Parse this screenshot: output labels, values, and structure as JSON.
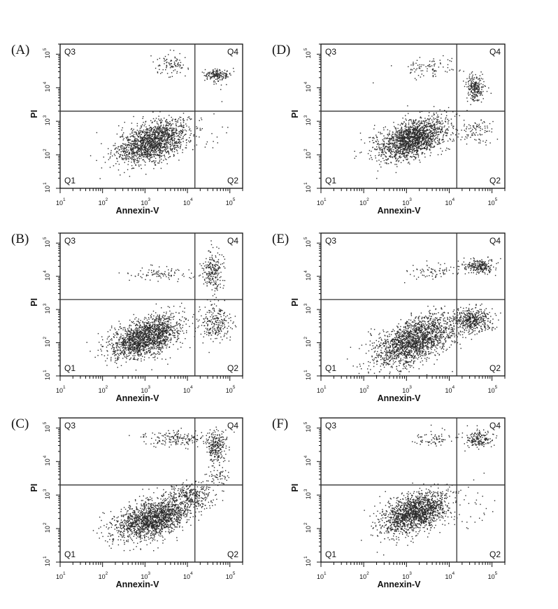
{
  "chart_data": [
    {
      "panel": "(A)",
      "type": "scatter",
      "xlabel": "Annexin-V",
      "ylabel": "PI",
      "xscale": "log",
      "yscale": "log",
      "xlim": [
        10,
        200000
      ],
      "ylim": [
        10,
        200000
      ],
      "x_ticks": [
        "1",
        "2",
        "3",
        "4",
        "5"
      ],
      "y_ticks": [
        "1",
        "2",
        "3",
        "4",
        "5"
      ],
      "gate_x": 15000,
      "gate_y": 2000,
      "quadrants": {
        "Q1": "Q1",
        "Q2": "Q2",
        "Q3": "Q3",
        "Q4": "Q4"
      },
      "populations": [
        {
          "x": 1500,
          "y": 250,
          "sx": 0.42,
          "sy": 0.28,
          "tilt": 0.35,
          "n": 1600
        },
        {
          "x": 50000,
          "y": 25000,
          "sx": 0.15,
          "sy": 0.1,
          "tilt": 0,
          "n": 170
        },
        {
          "x": 4000,
          "y": 50000,
          "sx": 0.2,
          "sy": 0.15,
          "tilt": 0,
          "n": 90
        },
        {
          "x": 40000,
          "y": 600,
          "sx": 0.3,
          "sy": 0.5,
          "tilt": 0,
          "n": 12
        }
      ]
    },
    {
      "panel": "(B)",
      "type": "scatter",
      "xlabel": "Annexin-V",
      "ylabel": "PI",
      "xscale": "log",
      "yscale": "log",
      "xlim": [
        10,
        200000
      ],
      "ylim": [
        10,
        200000
      ],
      "x_ticks": [
        "1",
        "2",
        "3",
        "4",
        "5"
      ],
      "y_ticks": [
        "1",
        "2",
        "3",
        "4",
        "5"
      ],
      "gate_x": 15000,
      "gate_y": 2000,
      "quadrants": {
        "Q1": "Q1",
        "Q2": "Q2",
        "Q3": "Q3",
        "Q4": "Q4"
      },
      "populations": [
        {
          "x": 1000,
          "y": 150,
          "sx": 0.42,
          "sy": 0.28,
          "tilt": 0.35,
          "n": 1700
        },
        {
          "x": 45000,
          "y": 400,
          "sx": 0.17,
          "sy": 0.3,
          "tilt": 0,
          "n": 230
        },
        {
          "x": 40000,
          "y": 15000,
          "sx": 0.12,
          "sy": 0.3,
          "tilt": 0,
          "n": 220
        },
        {
          "x": 2500,
          "y": 12000,
          "sx": 0.45,
          "sy": 0.1,
          "tilt": 0,
          "n": 90
        }
      ]
    },
    {
      "panel": "(C)",
      "type": "scatter",
      "xlabel": "Annexin-V",
      "ylabel": "PI",
      "xscale": "log",
      "yscale": "log",
      "xlim": [
        10,
        200000
      ],
      "ylim": [
        10,
        200000
      ],
      "x_ticks": [
        "1",
        "2",
        "3",
        "4",
        "5"
      ],
      "y_ticks": [
        "1",
        "2",
        "3",
        "4",
        "5"
      ],
      "gate_x": 15000,
      "gate_y": 2000,
      "quadrants": {
        "Q1": "Q1",
        "Q2": "Q2",
        "Q3": "Q3",
        "Q4": "Q4"
      },
      "populations": [
        {
          "x": 1500,
          "y": 200,
          "sx": 0.45,
          "sy": 0.28,
          "tilt": 0.35,
          "n": 1700
        },
        {
          "x": 12000,
          "y": 1000,
          "sx": 0.25,
          "sy": 0.2,
          "tilt": 0,
          "n": 260
        },
        {
          "x": 45000,
          "y": 30000,
          "sx": 0.12,
          "sy": 0.25,
          "tilt": 0,
          "n": 240
        },
        {
          "x": 5000,
          "y": 50000,
          "sx": 0.4,
          "sy": 0.1,
          "tilt": 0,
          "n": 170
        },
        {
          "x": 50000,
          "y": 4000,
          "sx": 0.15,
          "sy": 0.2,
          "tilt": 0,
          "n": 60
        }
      ]
    },
    {
      "panel": "(D)",
      "type": "scatter",
      "xlabel": "Annexin-V",
      "ylabel": "PI",
      "xscale": "log",
      "yscale": "log",
      "xlim": [
        10,
        200000
      ],
      "ylim": [
        10,
        200000
      ],
      "x_ticks": [
        "1",
        "2",
        "3",
        "4",
        "5"
      ],
      "y_ticks": [
        "1",
        "2",
        "3",
        "4",
        "5"
      ],
      "gate_x": 15000,
      "gate_y": 2000,
      "quadrants": {
        "Q1": "Q1",
        "Q2": "Q2",
        "Q3": "Q3",
        "Q4": "Q4"
      },
      "populations": [
        {
          "x": 1300,
          "y": 300,
          "sx": 0.42,
          "sy": 0.28,
          "tilt": 0.35,
          "n": 1700
        },
        {
          "x": 40000,
          "y": 10000,
          "sx": 0.1,
          "sy": 0.2,
          "tilt": 0,
          "n": 230
        },
        {
          "x": 45000,
          "y": 500,
          "sx": 0.2,
          "sy": 0.2,
          "tilt": 0,
          "n": 90
        },
        {
          "x": 3500,
          "y": 40000,
          "sx": 0.35,
          "sy": 0.15,
          "tilt": 0,
          "n": 90
        }
      ]
    },
    {
      "panel": "(E)",
      "type": "scatter",
      "xlabel": "Annexin-V",
      "ylabel": "PI",
      "xscale": "log",
      "yscale": "log",
      "xlim": [
        10,
        200000
      ],
      "ylim": [
        10,
        200000
      ],
      "x_ticks": [
        "1",
        "2",
        "3",
        "4",
        "5"
      ],
      "y_ticks": [
        "1",
        "2",
        "3",
        "4",
        "5"
      ],
      "gate_x": 15000,
      "gate_y": 2000,
      "quadrants": {
        "Q1": "Q1",
        "Q2": "Q2",
        "Q3": "Q3",
        "Q4": "Q4"
      },
      "populations": [
        {
          "x": 1500,
          "y": 120,
          "sx": 0.48,
          "sy": 0.32,
          "tilt": 0.45,
          "n": 1800
        },
        {
          "x": 35000,
          "y": 500,
          "sx": 0.22,
          "sy": 0.18,
          "tilt": 0,
          "n": 420
        },
        {
          "x": 50000,
          "y": 20000,
          "sx": 0.18,
          "sy": 0.12,
          "tilt": 0,
          "n": 230
        },
        {
          "x": 4000,
          "y": 15000,
          "sx": 0.25,
          "sy": 0.12,
          "tilt": 0,
          "n": 70
        }
      ]
    },
    {
      "panel": "(F)",
      "type": "scatter",
      "xlabel": "Annexin-V",
      "ylabel": "PI",
      "xscale": "log",
      "yscale": "log",
      "xlim": [
        10,
        200000
      ],
      "ylim": [
        10,
        200000
      ],
      "x_ticks": [
        "1",
        "2",
        "3",
        "4",
        "5"
      ],
      "y_ticks": [
        "1",
        "2",
        "3",
        "4",
        "5"
      ],
      "gate_x": 15000,
      "gate_y": 2000,
      "quadrants": {
        "Q1": "Q1",
        "Q2": "Q2",
        "Q3": "Q3",
        "Q4": "Q4"
      },
      "populations": [
        {
          "x": 1500,
          "y": 300,
          "sx": 0.4,
          "sy": 0.28,
          "tilt": 0.35,
          "n": 1600
        },
        {
          "x": 50000,
          "y": 50000,
          "sx": 0.15,
          "sy": 0.12,
          "tilt": 0,
          "n": 170
        },
        {
          "x": 4000,
          "y": 50000,
          "sx": 0.22,
          "sy": 0.12,
          "tilt": 0,
          "n": 70
        },
        {
          "x": 40000,
          "y": 500,
          "sx": 0.3,
          "sy": 0.4,
          "tilt": 0,
          "n": 25
        }
      ]
    }
  ]
}
